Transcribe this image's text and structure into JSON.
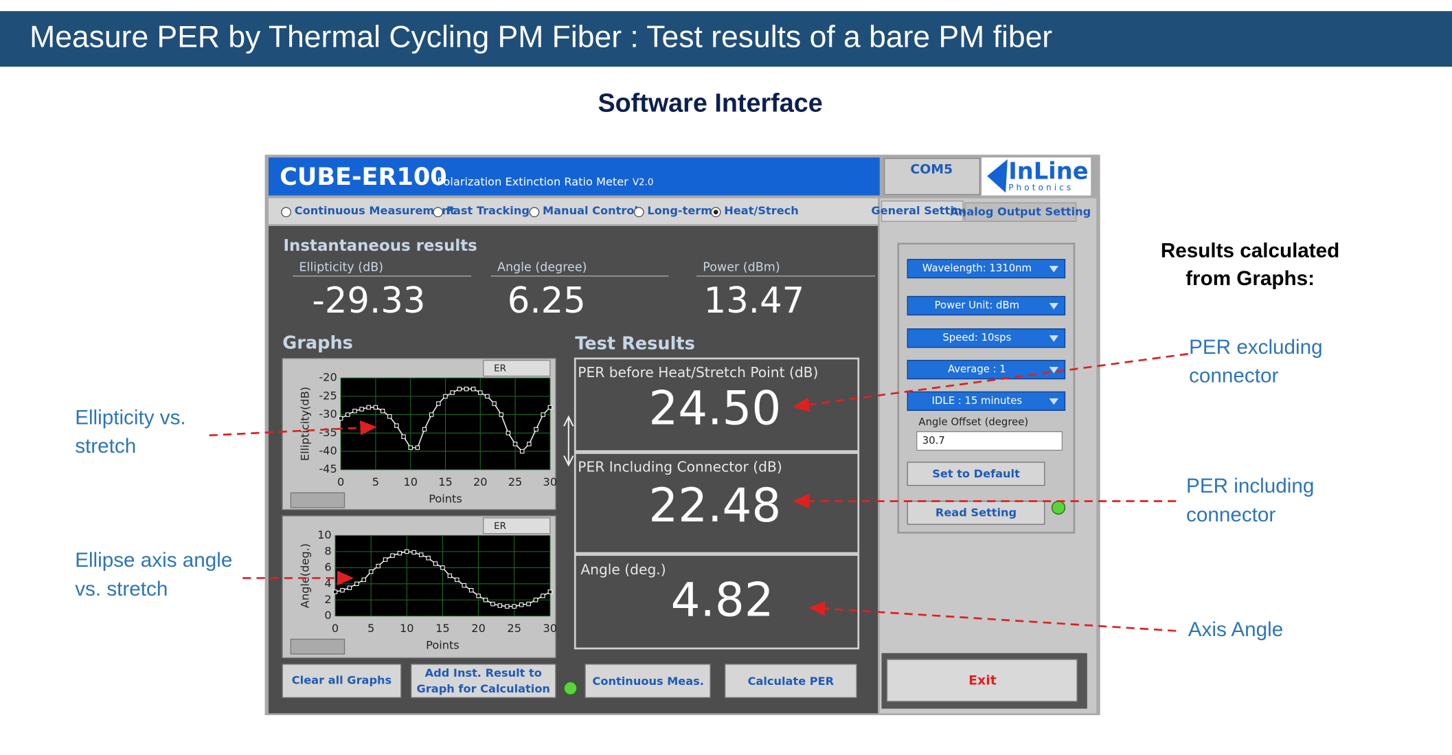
{
  "header": {
    "title": "Measure PER by Thermal Cycling  PM Fiber : Test results of a bare PM fiber"
  },
  "subtitle": "Software Interface",
  "app": {
    "name": "CUBE-ER100",
    "description": "Polarization Extinction Ratio Meter",
    "version": "V2.0",
    "port": "COM5",
    "logo": {
      "name": "InLine",
      "tagline": "Photonics"
    },
    "modes": {
      "options": [
        "Continuous Measurement",
        "Fast Tracking",
        "Manual Control",
        "Long-term",
        "Heat/Strech"
      ],
      "selected": 4
    },
    "tabs": [
      "General Setting",
      "Analog Output Setting"
    ],
    "instantaneous": {
      "title": "Instantaneous results",
      "readings": [
        {
          "label": "Ellipticity (dB)",
          "value": "-29.33"
        },
        {
          "label": "Angle (degree)",
          "value": "6.25"
        },
        {
          "label": "Power (dBm)",
          "value": "13.47"
        }
      ]
    },
    "graphs_title": "Graphs",
    "graphs": [
      {
        "type": "line",
        "badge": "ER",
        "y_label": "Ellipticity(dB)",
        "x_label": "Points",
        "xlim": [
          0,
          30
        ],
        "xticks": [
          0,
          5,
          10,
          15,
          20,
          25,
          30
        ],
        "ylim": [
          -45,
          -20
        ],
        "yticks": [
          -20,
          -25,
          -30,
          -35,
          -40,
          -45
        ],
        "x": [
          0,
          1,
          2,
          3,
          4,
          5,
          6,
          7,
          8,
          9,
          10,
          11,
          12,
          13,
          14,
          15,
          16,
          17,
          18,
          19,
          20,
          21,
          22,
          23,
          24,
          25,
          26,
          27,
          28,
          29,
          30
        ],
        "values": [
          -31,
          -30,
          -29,
          -28.5,
          -28,
          -28,
          -29,
          -30.5,
          -33,
          -36,
          -39,
          -39,
          -34,
          -30,
          -27,
          -25,
          -24,
          -23,
          -23,
          -23,
          -24,
          -25,
          -27,
          -30,
          -35,
          -38,
          -40,
          -38,
          -34,
          -30,
          -28
        ]
      },
      {
        "type": "line",
        "badge": "ER",
        "y_label": "Angle(deg.)",
        "x_label": "Points",
        "xlim": [
          0,
          30
        ],
        "xticks": [
          0,
          5,
          10,
          15,
          20,
          25,
          30
        ],
        "ylim": [
          0,
          10
        ],
        "yticks": [
          0,
          2,
          4,
          6,
          8,
          10
        ],
        "x": [
          0,
          1,
          2,
          3,
          4,
          5,
          6,
          7,
          8,
          9,
          10,
          11,
          12,
          13,
          14,
          15,
          16,
          17,
          18,
          19,
          20,
          21,
          22,
          23,
          24,
          25,
          26,
          27,
          28,
          29,
          30
        ],
        "values": [
          3,
          3.2,
          3.5,
          4,
          4.5,
          5.5,
          6.2,
          7,
          7.5,
          7.8,
          8,
          7.9,
          7.6,
          7.2,
          6.5,
          6,
          5,
          4.5,
          3.8,
          3.2,
          2.5,
          2,
          1.5,
          1.3,
          1.2,
          1.2,
          1.4,
          1.5,
          2,
          2.5,
          3
        ]
      }
    ],
    "test_results": {
      "title": "Test Results",
      "items": [
        {
          "label": "PER before Heat/Stretch Point (dB)",
          "value": "24.50"
        },
        {
          "label": "PER Including Connector (dB)",
          "value": "22.48"
        },
        {
          "label": "Angle (deg.)",
          "value": "4.82"
        }
      ]
    },
    "settings": {
      "dropdowns": [
        "Wavelength: 1310nm",
        "Power Unit: dBm",
        "Speed: 10sps",
        "Average : 1",
        "IDLE : 15 minutes"
      ],
      "angle_offset": {
        "label": "Angle Offset (degree)",
        "value": "30.7"
      },
      "buttons": [
        "Set to Default",
        "Read Setting"
      ]
    },
    "exit": "Exit",
    "buttons": {
      "clear": "Clear  all Graphs",
      "add": [
        "Add Inst. Result to",
        "Graph for Calculation"
      ],
      "continuous": "Continuous Meas.",
      "calculate": "Calculate PER"
    }
  },
  "annotations": {
    "results_heading": [
      "Results calculated",
      "from Graphs:"
    ],
    "per_excluding": [
      "PER excluding",
      "connector"
    ],
    "per_including": [
      "PER including",
      "connector"
    ],
    "axis_angle": "Axis Angle",
    "ellipticity": [
      "Ellipticity vs.",
      "stretch"
    ],
    "ellipse_angle": [
      "Ellipse axis angle",
      "vs. stretch"
    ]
  }
}
